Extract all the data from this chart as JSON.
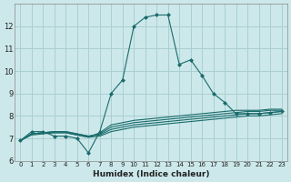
{
  "xlabel": "Humidex (Indice chaleur)",
  "background_color": "#cce8ea",
  "grid_color": "#aacfd2",
  "line_color": "#1a6b6b",
  "xlim": [
    -0.5,
    23.5
  ],
  "ylim": [
    6,
    13
  ],
  "xticks": [
    0,
    1,
    2,
    3,
    4,
    5,
    6,
    7,
    8,
    9,
    10,
    11,
    12,
    13,
    14,
    15,
    16,
    17,
    18,
    19,
    20,
    21,
    22,
    23
  ],
  "yticks": [
    6,
    7,
    8,
    9,
    10,
    11,
    12
  ],
  "lines": [
    {
      "x": [
        0,
        1,
        2,
        3,
        4,
        5,
        6,
        7,
        8,
        9,
        10,
        11,
        12,
        13,
        14,
        15,
        16,
        17,
        18,
        19,
        20,
        21,
        22,
        23
      ],
      "y": [
        6.9,
        7.3,
        7.3,
        7.1,
        7.1,
        7.0,
        6.35,
        7.3,
        9.0,
        9.6,
        12.0,
        12.4,
        12.5,
        12.5,
        10.3,
        10.5,
        9.8,
        9.0,
        8.6,
        8.1,
        8.1,
        8.1,
        8.15,
        8.2
      ],
      "marker": true
    },
    {
      "x": [
        0,
        1,
        2,
        3,
        4,
        5,
        6,
        7,
        8,
        9,
        10,
        11,
        12,
        13,
        14,
        15,
        16,
        17,
        18,
        19,
        20,
        21,
        22,
        23
      ],
      "y": [
        6.9,
        7.2,
        7.25,
        7.25,
        7.25,
        7.15,
        7.05,
        7.25,
        7.6,
        7.7,
        7.8,
        7.85,
        7.9,
        7.95,
        8.0,
        8.05,
        8.1,
        8.15,
        8.2,
        8.25,
        8.25,
        8.25,
        8.3,
        8.3
      ],
      "marker": false
    },
    {
      "x": [
        0,
        1,
        2,
        3,
        4,
        5,
        6,
        7,
        8,
        9,
        10,
        11,
        12,
        13,
        14,
        15,
        16,
        17,
        18,
        19,
        20,
        21,
        22,
        23
      ],
      "y": [
        6.9,
        7.2,
        7.25,
        7.3,
        7.3,
        7.2,
        7.1,
        7.2,
        7.5,
        7.6,
        7.7,
        7.75,
        7.8,
        7.85,
        7.9,
        7.95,
        8.0,
        8.05,
        8.1,
        8.15,
        8.2,
        8.2,
        8.25,
        8.25
      ],
      "marker": false
    },
    {
      "x": [
        0,
        1,
        2,
        3,
        4,
        5,
        6,
        7,
        8,
        9,
        10,
        11,
        12,
        13,
        14,
        15,
        16,
        17,
        18,
        19,
        20,
        21,
        22,
        23
      ],
      "y": [
        6.9,
        7.2,
        7.25,
        7.3,
        7.3,
        7.2,
        7.1,
        7.15,
        7.4,
        7.5,
        7.6,
        7.65,
        7.7,
        7.75,
        7.8,
        7.85,
        7.9,
        7.95,
        8.0,
        8.05,
        8.1,
        8.1,
        8.15,
        8.2
      ],
      "marker": false
    },
    {
      "x": [
        0,
        1,
        2,
        3,
        4,
        5,
        6,
        7,
        8,
        9,
        10,
        11,
        12,
        13,
        14,
        15,
        16,
        17,
        18,
        19,
        20,
        21,
        22,
        23
      ],
      "y": [
        6.9,
        7.15,
        7.2,
        7.25,
        7.25,
        7.15,
        7.05,
        7.1,
        7.3,
        7.4,
        7.5,
        7.55,
        7.6,
        7.65,
        7.7,
        7.75,
        7.8,
        7.85,
        7.9,
        7.95,
        8.0,
        8.0,
        8.05,
        8.1
      ],
      "marker": false
    }
  ]
}
